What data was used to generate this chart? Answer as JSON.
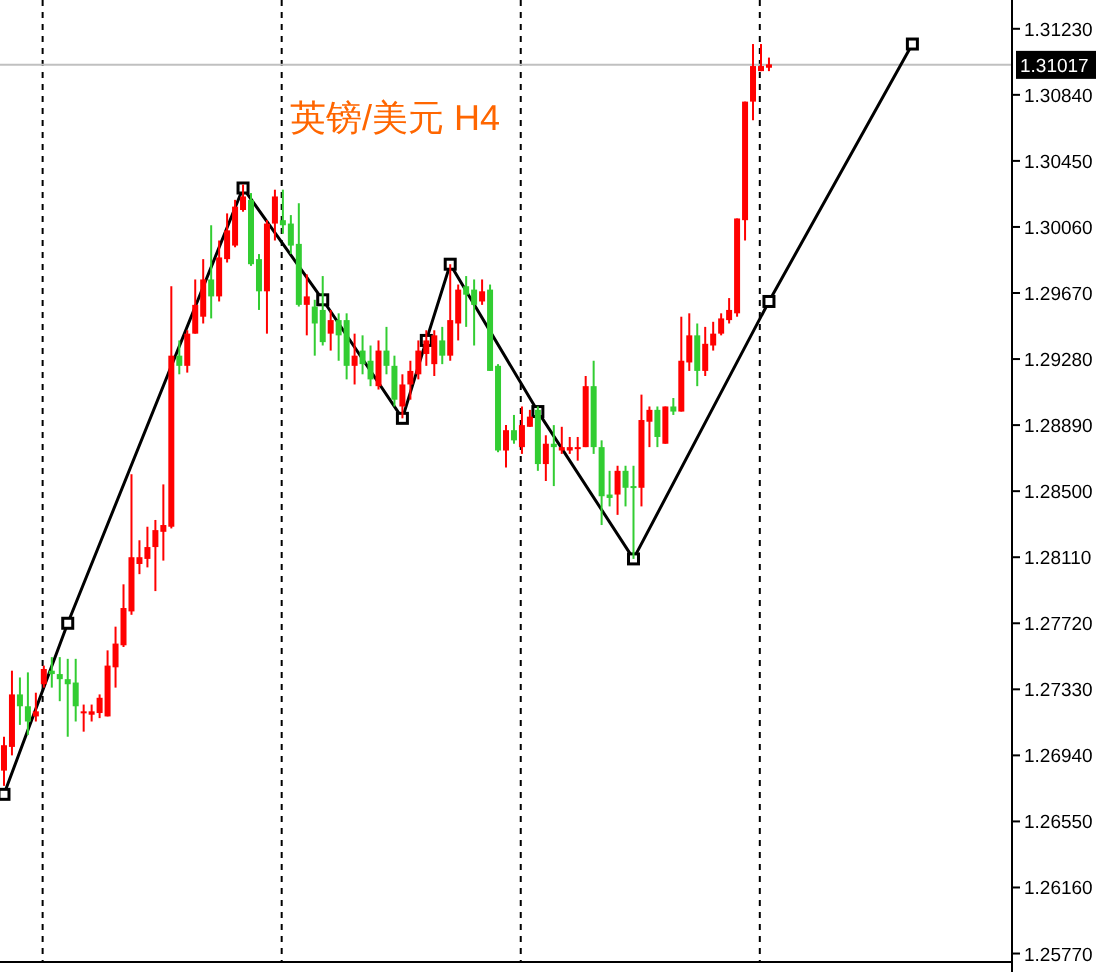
{
  "chart_data": {
    "type": "candlestick",
    "title": "英镑/美元 H4",
    "categories": [
      null,
      null,
      null,
      null,
      null,
      null,
      null,
      null,
      null,
      null,
      null,
      null,
      null,
      null,
      null,
      null,
      null,
      null,
      null,
      null,
      null,
      null,
      null,
      null,
      null,
      null,
      null,
      null,
      null,
      null,
      null,
      null,
      null,
      null,
      null,
      null,
      null,
      null,
      null,
      null,
      null,
      null,
      null,
      null,
      null,
      null,
      null,
      null,
      null,
      null,
      null,
      null,
      null,
      null,
      null,
      null,
      null,
      null,
      null,
      null,
      null,
      null,
      null,
      null,
      null,
      null,
      null,
      null,
      null,
      null,
      null,
      null,
      null,
      null,
      null,
      null,
      null,
      null,
      null,
      null,
      null,
      null,
      null,
      null,
      null,
      null,
      null,
      null,
      null,
      null,
      null,
      null,
      null,
      null,
      null,
      null,
      null,
      null,
      null,
      null,
      null,
      null,
      null,
      null,
      null,
      null,
      null,
      null,
      null,
      null,
      null,
      null,
      null,
      null,
      null,
      null,
      null,
      null,
      null,
      null,
      null,
      null,
      null,
      null,
      null,
      null,
      null
    ],
    "ohlc": [
      [
        1.2685,
        1.2705,
        1.2676,
        1.27
      ],
      [
        1.2699,
        1.2744,
        1.2694,
        1.273
      ],
      [
        1.273,
        1.274,
        1.2712,
        1.2723
      ],
      [
        1.2723,
        1.2743,
        1.2706,
        1.2714
      ],
      [
        1.2717,
        1.2731,
        1.2714,
        1.272
      ],
      [
        1.2736,
        1.2747,
        1.2734,
        1.2745
      ],
      [
        1.2744,
        1.2752,
        1.2734,
        1.2742
      ],
      [
        1.2742,
        1.2752,
        1.2726,
        1.2739
      ],
      [
        1.2739,
        1.2751,
        1.2705,
        1.2736
      ],
      [
        1.2737,
        1.2751,
        1.2714,
        1.2723
      ],
      [
        1.2719,
        1.2724,
        1.2708,
        1.272
      ],
      [
        1.2718,
        1.2724,
        1.2714,
        1.272
      ],
      [
        1.2719,
        1.273,
        1.2716,
        1.2728
      ],
      [
        1.2717,
        1.2756,
        1.2717,
        1.2747
      ],
      [
        1.2746,
        1.277,
        1.2734,
        1.276
      ],
      [
        1.2759,
        1.2795,
        1.2758,
        1.2781
      ],
      [
        1.2779,
        1.286,
        1.2777,
        1.2811
      ],
      [
        1.2807,
        1.2821,
        1.2801,
        1.2811
      ],
      [
        1.281,
        1.2829,
        1.2805,
        1.2817
      ],
      [
        1.2817,
        1.2833,
        1.2791,
        1.2827
      ],
      [
        1.2826,
        1.2854,
        1.2809,
        1.283
      ],
      [
        1.2829,
        1.2971,
        1.2828,
        1.293
      ],
      [
        1.293,
        1.2939,
        1.2919,
        1.2924
      ],
      [
        1.2924,
        1.2945,
        1.292,
        1.2943
      ],
      [
        1.2943,
        1.2975,
        1.2943,
        1.296
      ],
      [
        1.2953,
        1.2987,
        1.2949,
        1.2975
      ],
      [
        1.2975,
        1.3007,
        1.2952,
        1.2965
      ],
      [
        1.2965,
        1.2998,
        1.2962,
        1.2988
      ],
      [
        1.2987,
        1.3014,
        1.2985,
        1.3004
      ],
      [
        1.2995,
        1.3022,
        1.2994,
        1.3018
      ],
      [
        1.3016,
        1.3031,
        1.3015,
        1.3024
      ],
      [
        1.3022,
        1.3026,
        1.2983,
        1.2984
      ],
      [
        1.2987,
        1.299,
        1.2957,
        1.2968
      ],
      [
        1.2968,
        1.301,
        1.2943,
        1.3008
      ],
      [
        1.3008,
        1.3028,
        1.2998,
        1.3024
      ],
      [
        1.301,
        1.3028,
        1.3002,
        1.3007
      ],
      [
        1.3008,
        1.3013,
        1.299,
        1.2995
      ],
      [
        1.2996,
        1.302,
        1.2959,
        1.296
      ],
      [
        1.296,
        1.2978,
        1.2942,
        1.2965
      ],
      [
        1.2959,
        1.2963,
        1.293,
        1.2949
      ],
      [
        1.2957,
        1.2977,
        1.2936,
        1.2938
      ],
      [
        1.2943,
        1.2957,
        1.2933,
        1.2951
      ],
      [
        1.2951,
        1.2955,
        1.2927,
        1.2942
      ],
      [
        1.2951,
        1.2955,
        1.2916,
        1.2924
      ],
      [
        1.2924,
        1.2943,
        1.2913,
        1.293
      ],
      [
        1.2933,
        1.2942,
        1.2919,
        1.2925
      ],
      [
        1.2927,
        1.2936,
        1.2912,
        1.2916
      ],
      [
        1.2912,
        1.2939,
        1.291,
        1.2933
      ],
      [
        1.2933,
        1.2947,
        1.2919,
        1.2924
      ],
      [
        1.2924,
        1.293,
        1.29,
        1.2904
      ],
      [
        1.29,
        1.2919,
        1.2893,
        1.2913
      ],
      [
        1.2913,
        1.2927,
        1.2904,
        1.2921
      ],
      [
        1.2919,
        1.2939,
        1.2916,
        1.2933
      ],
      [
        1.2931,
        1.2945,
        1.2924,
        1.2939
      ],
      [
        1.2925,
        1.2945,
        1.2918,
        1.2942
      ],
      [
        1.2939,
        1.2947,
        1.2925,
        1.293
      ],
      [
        1.293,
        1.2984,
        1.2927,
        1.2951
      ],
      [
        1.2949,
        1.2972,
        1.2939,
        1.2969
      ],
      [
        1.2971,
        1.2977,
        1.2947,
        1.2966
      ],
      [
        1.2969,
        1.2975,
        1.2936,
        1.296
      ],
      [
        1.2962,
        1.2975,
        1.296,
        1.2968
      ],
      [
        1.2969,
        1.2972,
        1.2921,
        1.2921
      ],
      [
        1.2924,
        1.2925,
        1.2873,
        1.2874
      ],
      [
        1.2874,
        1.2889,
        1.2864,
        1.2886
      ],
      [
        1.2886,
        1.2895,
        1.2878,
        1.288
      ],
      [
        1.2876,
        1.29,
        1.2872,
        1.2889
      ],
      [
        1.2888,
        1.2898,
        1.2888,
        1.2894
      ],
      [
        1.2898,
        1.29,
        1.2862,
        1.2866
      ],
      [
        1.2866,
        1.2883,
        1.2856,
        1.2878
      ],
      [
        1.2878,
        1.2889,
        1.2853,
        1.2876
      ],
      [
        1.2874,
        1.2888,
        1.2872,
        1.2876
      ],
      [
        1.2874,
        1.2882,
        1.2872,
        1.2876
      ],
      [
        1.2875,
        1.2882,
        1.2868,
        1.2876
      ],
      [
        1.2876,
        1.2918,
        1.2876,
        1.2912
      ],
      [
        1.2912,
        1.2927,
        1.2872,
        1.2876
      ],
      [
        1.2876,
        1.288,
        1.283,
        1.2847
      ],
      [
        1.2848,
        1.2862,
        1.2841,
        1.2846
      ],
      [
        1.2848,
        1.2865,
        1.2836,
        1.2862
      ],
      [
        1.2862,
        1.2865,
        1.2841,
        1.2852
      ],
      [
        1.2853,
        1.2865,
        1.281,
        1.2852
      ],
      [
        1.2852,
        1.2907,
        1.2841,
        1.2892
      ],
      [
        1.2891,
        1.29,
        1.2876,
        1.2898
      ],
      [
        1.2898,
        1.29,
        1.2876,
        1.2882
      ],
      [
        1.2878,
        1.29,
        1.2878,
        1.29
      ],
      [
        1.29,
        1.2905,
        1.2895,
        1.2897
      ],
      [
        1.2897,
        1.2953,
        1.2897,
        1.2927
      ],
      [
        1.2926,
        1.2955,
        1.2921,
        1.2942
      ],
      [
        1.2942,
        1.2949,
        1.2912,
        1.2921
      ],
      [
        1.2921,
        1.2947,
        1.2918,
        1.2937
      ],
      [
        1.2936,
        1.295,
        1.2933,
        1.2943
      ],
      [
        1.2943,
        1.2955,
        1.2942,
        1.2952
      ],
      [
        1.2951,
        1.2964,
        1.2949,
        1.2957
      ],
      [
        1.2955,
        1.3011,
        1.2953,
        1.3011
      ],
      [
        1.301,
        1.308,
        1.2998,
        1.308
      ],
      [
        1.308,
        1.3114,
        1.3069,
        1.3101
      ],
      [
        1.3098,
        1.3114,
        1.3098,
        1.3101
      ],
      [
        1.31,
        1.3106,
        1.3098,
        1.3102
      ],
      null,
      null,
      null,
      null,
      null,
      null,
      null,
      null,
      null,
      null,
      null,
      null,
      null,
      null,
      null,
      null,
      null,
      null,
      null,
      null,
      null,
      null,
      null,
      null,
      null,
      null,
      null,
      null,
      null,
      null
    ],
    "colors": [
      "#ff0000",
      "#ff0000",
      "#32cd32",
      "#32cd32",
      "#ff0000",
      "#ff0000",
      "#32cd32",
      "#32cd32",
      "#32cd32",
      "#32cd32",
      "#ff0000",
      "#ff0000",
      "#ff0000",
      "#ff0000",
      "#ff0000",
      "#ff0000",
      "#ff0000",
      "#ff0000",
      "#ff0000",
      "#ff0000",
      "#ff0000",
      "#ff0000",
      "#32cd32",
      "#ff0000",
      "#ff0000",
      "#ff0000",
      "#32cd32",
      "#ff0000",
      "#ff0000",
      "#ff0000",
      "#ff0000",
      "#32cd32",
      "#32cd32",
      "#ff0000",
      "#ff0000",
      "#32cd32",
      "#32cd32",
      "#32cd32",
      "#ff0000",
      "#32cd32",
      "#32cd32",
      "#ff0000",
      "#32cd32",
      "#32cd32",
      "#ff0000",
      "#32cd32",
      "#32cd32",
      "#ff0000",
      "#32cd32",
      "#32cd32",
      "#ff0000",
      "#ff0000",
      "#ff0000",
      "#ff0000",
      "#ff0000",
      "#32cd32",
      "#ff0000",
      "#ff0000",
      "#32cd32",
      "#32cd32",
      "#ff0000",
      "#32cd32",
      "#32cd32",
      "#ff0000",
      "#32cd32",
      "#ff0000",
      "#ff0000",
      "#32cd32",
      "#ff0000",
      "#32cd32",
      "#ff0000",
      "#ff0000",
      "#ff0000",
      "#ff0000",
      "#32cd32",
      "#32cd32",
      "#32cd32",
      "#ff0000",
      "#32cd32",
      "#32cd32",
      "#ff0000",
      "#ff0000",
      "#32cd32",
      "#ff0000",
      "#32cd32",
      "#ff0000",
      "#ff0000",
      "#32cd32",
      "#ff0000",
      "#ff0000",
      "#ff0000",
      "#ff0000",
      "#ff0000",
      "#ff0000",
      "#ff0000",
      "#ff0000",
      "#ff0000",
      null,
      null,
      null,
      null,
      null,
      null,
      null,
      null,
      null,
      null,
      null,
      null,
      null,
      null,
      null,
      null,
      null,
      null,
      null,
      null,
      null,
      null,
      null,
      null,
      null,
      null,
      null,
      null,
      null,
      null
    ],
    "series": [
      {
        "type": "line",
        "color": "#000000",
        "marker": "square",
        "values": [
          1.2671,
          null,
          null,
          null,
          null,
          null,
          null,
          null,
          1.2772,
          null,
          null,
          null,
          null,
          null,
          null,
          null,
          null,
          null,
          null,
          null,
          null,
          null,
          null,
          null,
          null,
          null,
          null,
          null,
          null,
          null,
          1.3029,
          null,
          null,
          null,
          null,
          null,
          null,
          null,
          null,
          null,
          1.2963,
          null,
          null,
          null,
          null,
          null,
          null,
          null,
          null,
          null,
          1.2893,
          null,
          null,
          1.2939,
          null,
          null,
          1.2984,
          null,
          null,
          null,
          null,
          null,
          null,
          null,
          null,
          null,
          null,
          1.2897,
          null,
          null,
          null,
          null,
          null,
          null,
          null,
          null,
          null,
          null,
          null,
          1.281,
          null,
          null,
          null,
          null,
          null,
          null,
          null,
          null,
          null,
          null,
          null,
          null,
          null,
          null,
          null,
          null,
          1.2962,
          null,
          null,
          null,
          null,
          null,
          null,
          null,
          null,
          null,
          null,
          null,
          null,
          null,
          null,
          null,
          null,
          null,
          1.3114,
          null,
          null,
          null,
          null,
          null,
          null,
          null,
          null,
          null,
          null,
          null,
          null
        ]
      }
    ],
    "ylim": [
      1.2572,
      1.314
    ],
    "yticks": [
      {
        "value": 1.3123,
        "label": "1.31230"
      },
      {
        "value": 1.3084,
        "label": "1.30840"
      },
      {
        "value": 1.3045,
        "label": "1.30450"
      },
      {
        "value": 1.3006,
        "label": "1.30060"
      },
      {
        "value": 1.2967,
        "label": "1.29670"
      },
      {
        "value": 1.2928,
        "label": "1.29280"
      },
      {
        "value": 1.2889,
        "label": "1.28890"
      },
      {
        "value": 1.285,
        "label": "1.28500"
      },
      {
        "value": 1.2811,
        "label": "1.28110"
      },
      {
        "value": 1.2772,
        "label": "1.27720"
      },
      {
        "value": 1.2733,
        "label": "1.27330"
      },
      {
        "value": 1.2694,
        "label": "1.26940"
      },
      {
        "value": 1.2655,
        "label": "1.26550"
      },
      {
        "value": 1.2616,
        "label": "1.26160"
      },
      {
        "value": 1.2577,
        "label": "1.25770"
      }
    ],
    "ref_lines": [
      {
        "axis": "y",
        "value": 1.31017,
        "label": "1.31017",
        "color": "#c0c0c0"
      }
    ],
    "tick_labels": "y",
    "grid": false
  }
}
